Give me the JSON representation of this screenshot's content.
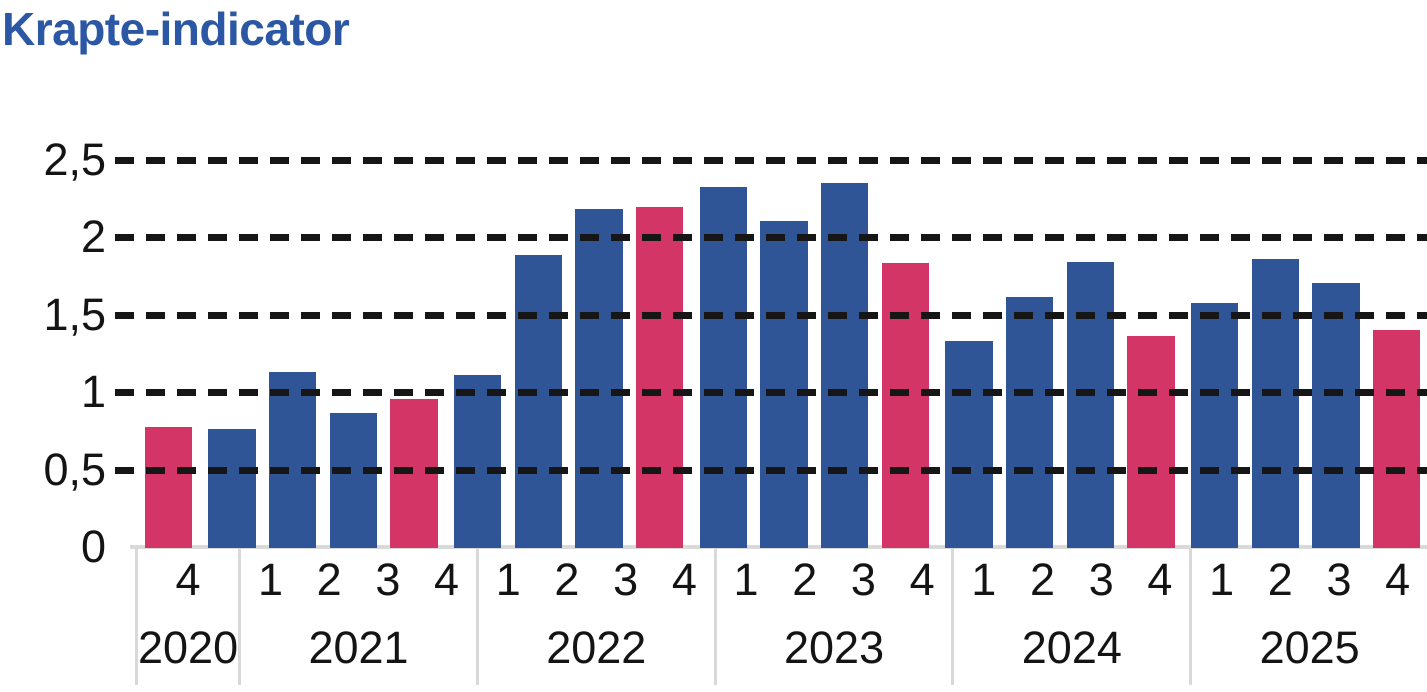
{
  "title": "Krapte-indicator",
  "colors": {
    "title": "#2B57A5",
    "bar_blue": "#2F5597",
    "bar_pink": "#D23566",
    "gridline": "#161616",
    "axis_line": "#D9D9D9",
    "label": "#141414"
  },
  "chart_data": {
    "type": "bar",
    "title": "Krapte-indicator",
    "xlabel": "",
    "ylabel": "",
    "ylim": [
      0,
      2.5
    ],
    "y_ticks": [
      "0",
      "0,5",
      "1",
      "1,5",
      "2",
      "2,5"
    ],
    "y_tick_values": [
      0,
      0.5,
      1,
      1.5,
      2,
      2.5
    ],
    "grid": "horizontal dashed lines at every 0.5, drawn over bars",
    "legend_position": "none",
    "series_note": "single series; fourth-quarter bars highlighted in crimson, other quarters dark blue",
    "groups": [
      {
        "year": "2020",
        "quarters": [
          "4"
        ],
        "values": [
          0.78
        ],
        "highlight": [
          true
        ]
      },
      {
        "year": "2021",
        "quarters": [
          "1",
          "2",
          "3",
          "4"
        ],
        "values": [
          0.77,
          1.14,
          0.87,
          0.96
        ],
        "highlight": [
          false,
          false,
          false,
          true
        ]
      },
      {
        "year": "2022",
        "quarters": [
          "1",
          "2",
          "3",
          "4"
        ],
        "values": [
          1.12,
          1.89,
          2.19,
          2.2
        ],
        "highlight": [
          false,
          false,
          false,
          true
        ]
      },
      {
        "year": "2023",
        "quarters": [
          "1",
          "2",
          "3",
          "4"
        ],
        "values": [
          2.33,
          2.11,
          2.36,
          1.84
        ],
        "highlight": [
          false,
          false,
          false,
          true
        ]
      },
      {
        "year": "2024",
        "quarters": [
          "1",
          "2",
          "3",
          "4"
        ],
        "values": [
          1.34,
          1.62,
          1.85,
          1.37
        ],
        "highlight": [
          false,
          false,
          false,
          true
        ]
      },
      {
        "year": "2025",
        "quarters": [
          "1",
          "2",
          "3",
          "4"
        ],
        "values": [
          1.58,
          1.87,
          1.71,
          1.41
        ],
        "highlight": [
          false,
          false,
          false,
          true
        ]
      }
    ]
  }
}
